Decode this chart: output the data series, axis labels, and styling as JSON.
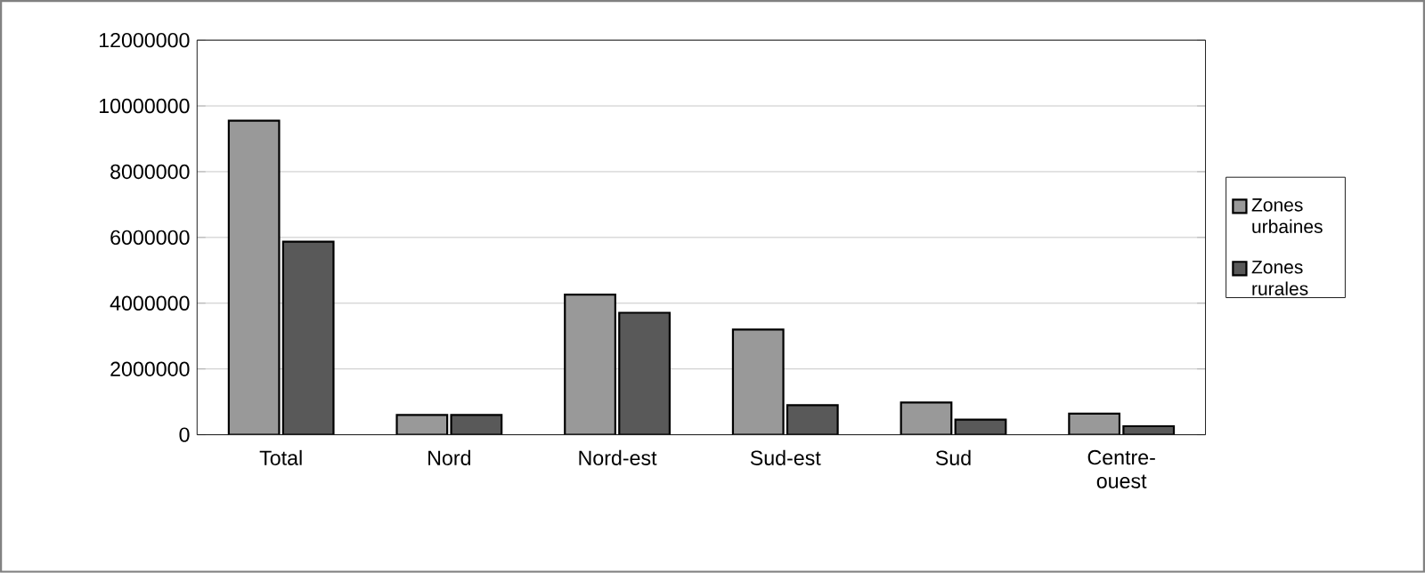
{
  "chart_data": {
    "type": "bar",
    "categories": [
      "Total",
      "Nord",
      "Nord-est",
      "Sud-est",
      "Sud",
      "Centre-ouest"
    ],
    "series": [
      {
        "name": "Zones urbaines",
        "color": "#999999",
        "values": [
          9550000,
          600000,
          4260000,
          3200000,
          980000,
          640000
        ]
      },
      {
        "name": "Zones rurales",
        "color": "#595959",
        "values": [
          5870000,
          600000,
          3710000,
          900000,
          460000,
          260000
        ]
      }
    ],
    "ylim": [
      0,
      12000000
    ],
    "yticks": [
      0,
      2000000,
      4000000,
      6000000,
      8000000,
      10000000,
      12000000
    ],
    "grid": "y",
    "legend": "right"
  }
}
